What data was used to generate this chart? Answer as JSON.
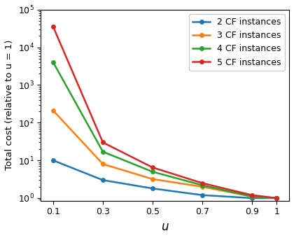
{
  "x": [
    0.1,
    0.3,
    0.5,
    0.7,
    0.9,
    1.0
  ],
  "series": [
    {
      "label": "2 CF instances",
      "color": "#1f77b4",
      "values": [
        10.0,
        3.0,
        1.8,
        1.2,
        1.0,
        1.0
      ]
    },
    {
      "label": "3 CF instances",
      "color": "#ff7f0e",
      "values": [
        210.0,
        8.0,
        3.2,
        2.0,
        1.1,
        1.0
      ]
    },
    {
      "label": "4 CF instances",
      "color": "#2ca02c",
      "values": [
        4000.0,
        17.0,
        5.0,
        2.2,
        1.1,
        1.0
      ]
    },
    {
      "label": "5 CF instances",
      "color": "#d62728",
      "values": [
        35000.0,
        30.0,
        6.5,
        2.5,
        1.2,
        1.0
      ]
    }
  ],
  "xlabel": "u",
  "ylabel": "Total cost (relative to u = 1)",
  "ylim": [
    0.85,
    100000
  ],
  "xlim": [
    0.05,
    1.05
  ],
  "xticks": [
    0.1,
    0.3,
    0.5,
    0.7,
    0.9,
    1
  ],
  "xtick_labels": [
    "0.1",
    "0.3",
    "0.5",
    "0.7",
    "0.9",
    "1"
  ],
  "marker": "o",
  "markersize": 4,
  "linewidth": 1.8,
  "legend_fontsize": 9,
  "xlabel_fontsize": 12,
  "ylabel_fontsize": 9.5,
  "tick_fontsize": 9
}
